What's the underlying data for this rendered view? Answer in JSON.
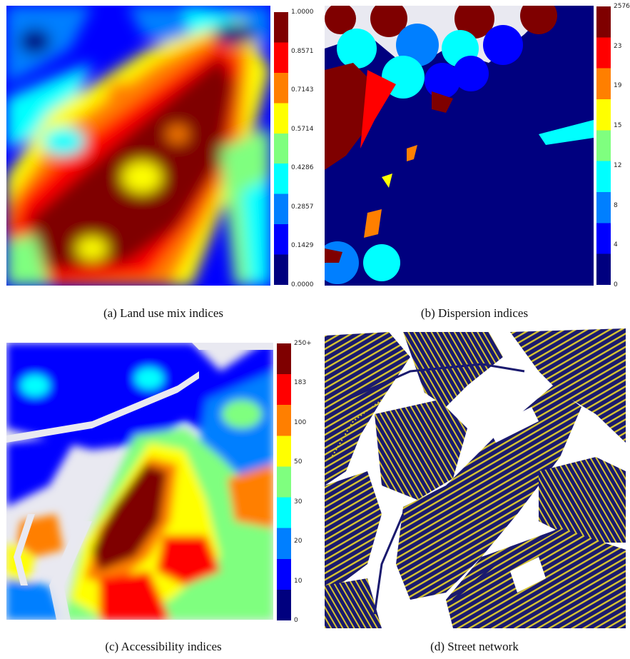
{
  "panels": [
    {
      "caption": "(a) Land use mix indices",
      "colorbar_ticks": [
        "1.0000",
        "0.8571",
        "0.7143",
        "0.5714",
        "0.4286",
        "0.2857",
        "0.1429",
        "0.0000"
      ]
    },
    {
      "caption": "(b) Dispersion indices",
      "colorbar_ticks": [
        "2576",
        "23",
        "19",
        "15",
        "12",
        "8",
        "4",
        "0"
      ]
    },
    {
      "caption": "(c) Accessibility indices",
      "colorbar_ticks": [
        "250+",
        "183",
        "100",
        "50",
        "30",
        "20",
        "10",
        "0"
      ]
    },
    {
      "caption": "(d) Street network"
    }
  ],
  "colors": {
    "jet": [
      "#00007f",
      "#0000ff",
      "#007fff",
      "#00ffff",
      "#7fff7f",
      "#ffff00",
      "#ff7f00",
      "#ff0000",
      "#7f0000"
    ],
    "water_bg": "#e9e9f1",
    "street_line": "#1a1a6e",
    "street_node": "#d6c432"
  }
}
